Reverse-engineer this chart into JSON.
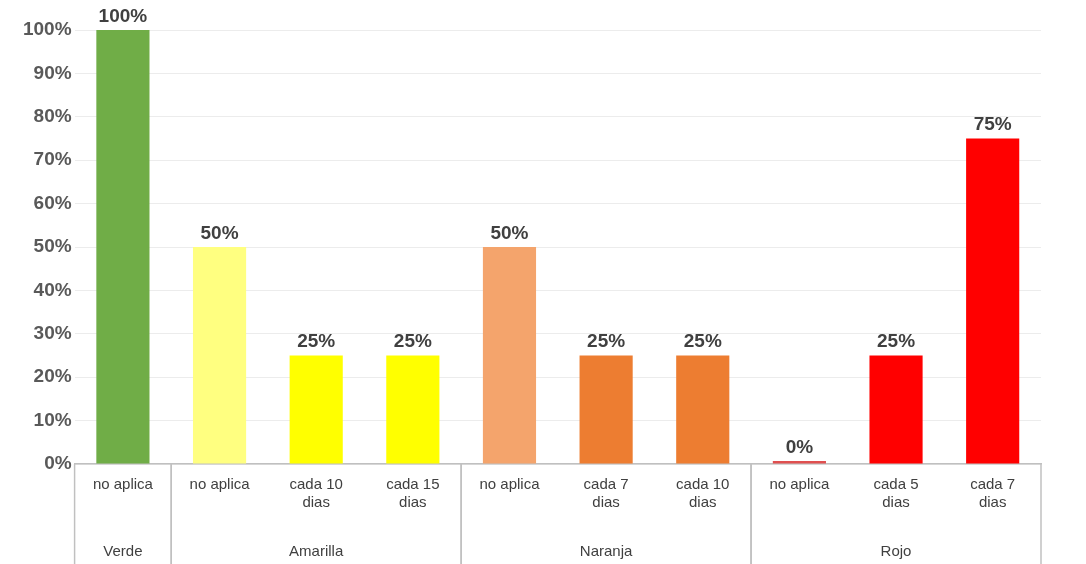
{
  "chart_data": {
    "type": "bar",
    "categories": [
      "no aplica",
      "no aplica",
      "cada 10 dias",
      "cada 15 dias",
      "no aplica",
      "cada 7 dias",
      "cada 10 dias",
      "no aplica",
      "cada 5 dias",
      "cada 7 dias"
    ],
    "values": [
      100,
      50,
      25,
      25,
      50,
      25,
      25,
      0,
      25,
      75
    ],
    "colors": [
      "#70ad47",
      "#ffff80",
      "#ffff00",
      "#ffff00",
      "#f4a46c",
      "#ed7d31",
      "#ed7d31",
      "#e05050",
      "#ff0000",
      "#ff0000"
    ],
    "ylim": [
      0,
      100
    ],
    "yticks": [
      {
        "value": 0,
        "label": "0%"
      },
      {
        "value": 10,
        "label": "10%"
      },
      {
        "value": 20,
        "label": "20%"
      },
      {
        "value": 30,
        "label": "30%"
      },
      {
        "value": 40,
        "label": "40%"
      },
      {
        "value": 50,
        "label": "50%"
      },
      {
        "value": 60,
        "label": "60%"
      },
      {
        "value": 70,
        "label": "70%"
      },
      {
        "value": 80,
        "label": "80%"
      },
      {
        "value": 90,
        "label": "90%"
      },
      {
        "value": 100,
        "label": "100%"
      }
    ],
    "value_labels": [
      "100%",
      "50%",
      "25%",
      "25%",
      "50%",
      "25%",
      "25%",
      "0%",
      "25%",
      "75%"
    ],
    "annotations": [
      "Verde",
      "Amarilla",
      "Naranja",
      "Rojo"
    ],
    "grid": "y",
    "legend": false
  }
}
